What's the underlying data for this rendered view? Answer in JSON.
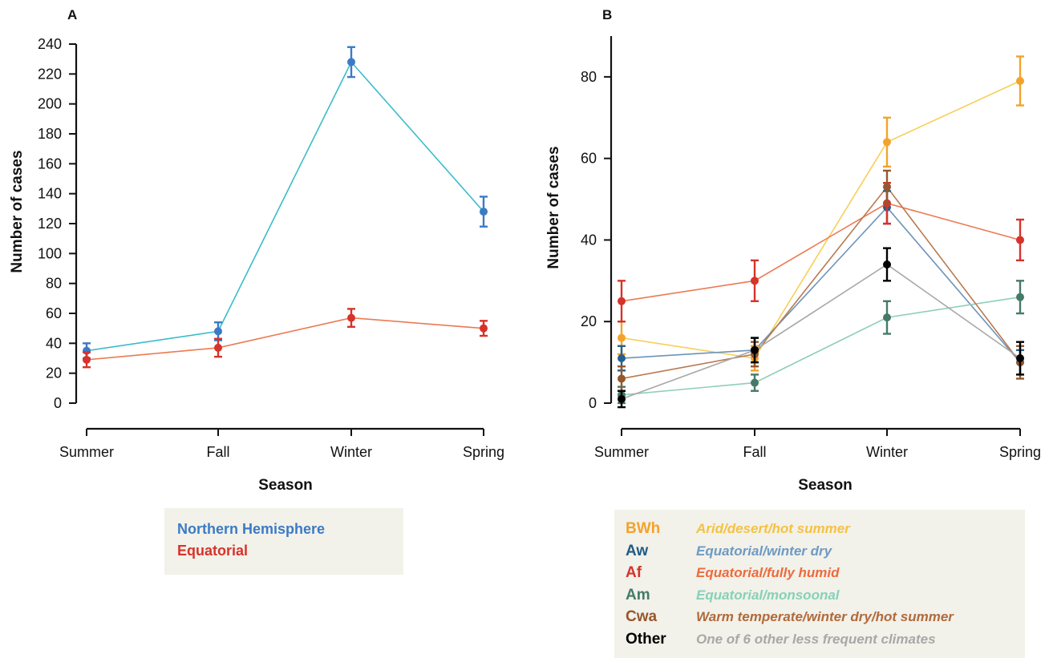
{
  "chart_data": [
    {
      "panel": "A",
      "type": "line",
      "xlabel": "Season",
      "ylabel": "Number of cases",
      "categories": [
        "Summer",
        "Fall",
        "Winter",
        "Spring"
      ],
      "ylim": [
        0,
        240
      ],
      "yticks": [
        "0",
        "20",
        "40",
        "60",
        "80",
        "100",
        "120",
        "140",
        "160",
        "180",
        "200",
        "220",
        "240"
      ],
      "error_bars": true,
      "series": [
        {
          "name": "Northern Hemisphere",
          "values": [
            35,
            48,
            228,
            128
          ],
          "errors": [
            5,
            6,
            10,
            10
          ],
          "marker_color": "#3b7bc4",
          "line_color": "#3bbcc9"
        },
        {
          "name": "Equatorial",
          "values": [
            29,
            37,
            57,
            50
          ],
          "errors": [
            5,
            6,
            6,
            5
          ],
          "marker_color": "#d6332a",
          "line_color": "#ec7a53"
        }
      ]
    },
    {
      "panel": "B",
      "type": "line",
      "xlabel": "Season",
      "ylabel": "Number of cases",
      "categories": [
        "Summer",
        "Fall",
        "Winter",
        "Spring"
      ],
      "ylim": [
        0,
        90
      ],
      "yticks": [
        "0",
        "20",
        "40",
        "60",
        "80"
      ],
      "error_bars": true,
      "series": [
        {
          "code": "BWh",
          "name": "Arid/desert/hot summer",
          "values": [
            16,
            11,
            64,
            79
          ],
          "errors": [
            4,
            3,
            6,
            6
          ],
          "marker_color": "#f3a32b",
          "line_color": "#f7cf5a",
          "label_color": "#f5c240"
        },
        {
          "code": "Aw",
          "name": "Equatorial/winter dry",
          "values": [
            11,
            13,
            48,
            10
          ],
          "errors": [
            3,
            3,
            4,
            3
          ],
          "marker_color": "#255f8e",
          "line_color": "#6d93b8",
          "label_color": "#6e9ac2"
        },
        {
          "code": "Af",
          "name": "Equatorial/fully humid",
          "values": [
            25,
            30,
            49,
            40
          ],
          "errors": [
            5,
            5,
            5,
            5
          ],
          "marker_color": "#d6332a",
          "line_color": "#ec7a53",
          "label_color": "#ec6b3c"
        },
        {
          "code": "Am",
          "name": "Equatorial/monsoonal",
          "values": [
            2,
            5,
            21,
            26
          ],
          "errors": [
            2,
            2,
            4,
            4
          ],
          "marker_color": "#457a68",
          "line_color": "#8fcfb6",
          "label_color": "#86d1b8"
        },
        {
          "code": "Cwa",
          "name": "Warm temperate/winter dry/hot summer",
          "values": [
            6,
            12,
            53,
            10
          ],
          "errors": [
            3,
            3,
            4,
            4
          ],
          "marker_color": "#95572d",
          "line_color": "#b97a52",
          "label_color": "#b06a3b"
        },
        {
          "code": "Other",
          "name": "One of 6 other less frequent climates",
          "values": [
            1,
            13,
            34,
            11
          ],
          "errors": [
            2,
            3,
            4,
            4
          ],
          "marker_color": "#000000",
          "line_color": "#a8a8a8",
          "label_color": "#a8a8a8"
        }
      ]
    }
  ],
  "panel_labels": {
    "a": "A",
    "b": "B"
  },
  "legend_a": {
    "items": [
      {
        "label": "Northern Hemisphere",
        "color": "#3b7bc4"
      },
      {
        "label": "Equatorial",
        "color": "#d6332a"
      }
    ]
  },
  "legend_b": {
    "items": [
      {
        "code": "BWh",
        "desc": "Arid/desert/hot summer",
        "code_color": "#f3a32b",
        "desc_color": "#f5c240"
      },
      {
        "code": "Aw",
        "desc": "Equatorial/winter dry",
        "code_color": "#1f5b86",
        "desc_color": "#6e9ac2"
      },
      {
        "code": "Af",
        "desc": "Equatorial/fully humid",
        "code_color": "#d6332a",
        "desc_color": "#ec6b3c"
      },
      {
        "code": "Am",
        "desc": "Equatorial/monsoonal",
        "code_color": "#457a68",
        "desc_color": "#86d1b8"
      },
      {
        "code": "Cwa",
        "desc": "Warm temperate/winter dry/hot summer",
        "code_color": "#95572d",
        "desc_color": "#b06a3b"
      },
      {
        "code": "Other",
        "desc": "One of 6 other less frequent climates",
        "code_color": "#000000",
        "desc_color": "#a8a8a8"
      }
    ]
  }
}
